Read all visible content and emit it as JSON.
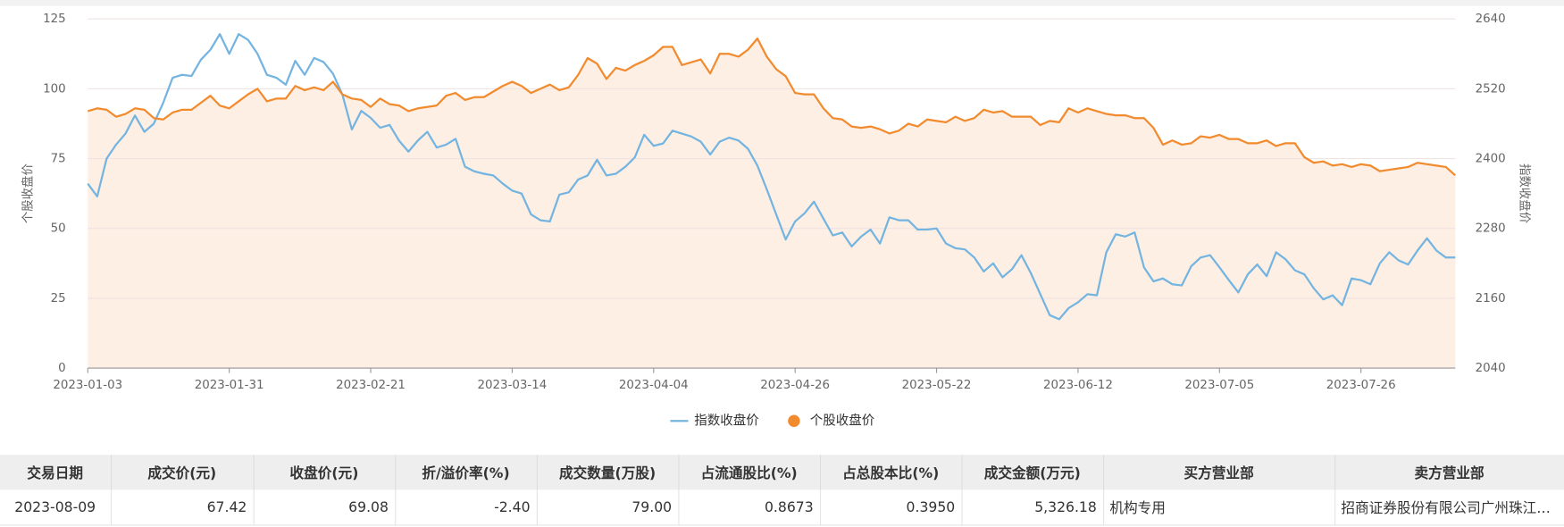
{
  "chart_data": {
    "type": "line",
    "ylabel": "个股收盘价",
    "y2label": "指数收盘价",
    "categories": [
      "2023-01-03",
      null,
      null,
      null,
      null,
      null,
      null,
      null,
      null,
      null,
      null,
      null,
      null,
      null,
      null,
      "2023-01-31",
      null,
      null,
      null,
      null,
      null,
      null,
      null,
      null,
      null,
      null,
      null,
      null,
      null,
      null,
      "2023-02-21",
      null,
      null,
      null,
      null,
      null,
      null,
      null,
      null,
      null,
      null,
      null,
      null,
      null,
      null,
      "2023-03-14",
      null,
      null,
      null,
      null,
      null,
      null,
      null,
      null,
      null,
      null,
      null,
      null,
      null,
      null,
      "2023-04-04",
      null,
      null,
      null,
      null,
      null,
      null,
      null,
      null,
      null,
      null,
      null,
      null,
      null,
      null,
      "2023-04-26",
      null,
      null,
      null,
      null,
      null,
      null,
      null,
      null,
      null,
      null,
      null,
      null,
      null,
      null,
      "2023-05-22",
      null,
      null,
      null,
      null,
      null,
      null,
      null,
      null,
      null,
      null,
      null,
      null,
      null,
      null,
      "2023-06-12",
      null,
      null,
      null,
      null,
      null,
      null,
      null,
      null,
      null,
      null,
      null,
      null,
      null,
      null,
      "2023-07-05",
      null,
      null,
      null,
      null,
      null,
      null,
      null,
      null,
      null,
      null,
      null,
      null,
      null,
      null,
      "2023-07-26",
      null,
      null,
      null,
      null,
      null,
      null,
      null,
      null,
      null,
      null
    ],
    "series": [
      {
        "name": "指数收盘价",
        "color": "#74b4e0",
        "axis": "y2",
        "values": [
          2357,
          2335,
          2400,
          2424,
          2443,
          2474,
          2446,
          2460,
          2496,
          2539,
          2544,
          2542,
          2570,
          2587,
          2614,
          2580,
          2614,
          2604,
          2580,
          2544,
          2539,
          2527,
          2568,
          2544,
          2573,
          2566,
          2546,
          2510,
          2450,
          2482,
          2470,
          2453,
          2458,
          2431,
          2412,
          2431,
          2446,
          2419,
          2424,
          2434,
          2386,
          2378,
          2374,
          2371,
          2357,
          2345,
          2340,
          2304,
          2294,
          2292,
          2338,
          2342,
          2364,
          2371,
          2398,
          2371,
          2374,
          2386,
          2402,
          2441,
          2422,
          2426,
          2448,
          2443,
          2438,
          2429,
          2407,
          2429,
          2436,
          2431,
          2417,
          2388,
          2347,
          2304,
          2261,
          2292,
          2306,
          2326,
          2297,
          2268,
          2273,
          2249,
          2266,
          2278,
          2254,
          2299,
          2294,
          2294,
          2278,
          2278,
          2280,
          2254,
          2246,
          2244,
          2230,
          2206,
          2220,
          2196,
          2210,
          2234,
          2203,
          2167,
          2131,
          2124,
          2143,
          2153,
          2167,
          2165,
          2239,
          2270,
          2266,
          2273,
          2213,
          2189,
          2194,
          2184,
          2182,
          2215,
          2230,
          2234,
          2213,
          2191,
          2170,
          2201,
          2218,
          2198,
          2239,
          2227,
          2208,
          2201,
          2177,
          2158,
          2165,
          2148,
          2194,
          2191,
          2184,
          2220,
          2239,
          2225,
          2218,
          2242,
          2263,
          2242,
          2230,
          2230
        ]
      },
      {
        "name": "个股收盘价",
        "color": "#f28a2e",
        "area_color": "#fdefe4",
        "values": [
          92,
          93,
          92.5,
          90,
          91,
          93,
          92.5,
          89.5,
          89,
          91.5,
          92.5,
          92.5,
          95,
          97.5,
          94,
          93,
          95.5,
          98,
          100,
          95.5,
          96.5,
          96.5,
          101,
          99.5,
          100.5,
          99.5,
          102.5,
          98,
          96.5,
          96,
          93.5,
          96.5,
          94.5,
          94,
          92,
          93,
          93.5,
          94,
          97.5,
          98.5,
          96,
          97,
          97,
          99,
          101,
          102.5,
          101,
          98.5,
          100,
          101.5,
          99.5,
          100.5,
          105,
          111,
          109,
          103.5,
          107.5,
          106.5,
          108.5,
          110,
          112,
          115,
          115,
          108.5,
          109.5,
          110.5,
          105.5,
          112.5,
          112.5,
          111.5,
          114,
          118,
          111.5,
          107,
          104.5,
          98.5,
          98,
          98,
          93,
          89.5,
          89,
          86.5,
          86,
          86.5,
          85.5,
          84,
          85,
          87.5,
          86.5,
          89,
          88.5,
          88,
          90,
          88.5,
          89.5,
          92.5,
          91.5,
          92,
          90,
          90,
          90,
          87,
          88.5,
          88,
          93,
          91.5,
          93,
          92,
          91,
          90.5,
          90.5,
          89.5,
          89.5,
          86,
          80,
          81.5,
          80,
          80.5,
          83,
          82.5,
          83.5,
          82,
          82,
          80.5,
          80.5,
          81.5,
          79.5,
          80.5,
          80.5,
          75.5,
          73.5,
          74,
          72.5,
          73,
          72,
          73,
          72.5,
          70.5,
          71,
          71.5,
          72,
          73.5,
          73,
          72.5,
          72,
          69
        ]
      }
    ],
    "ylim": [
      0,
      125
    ],
    "yticks": [
      0,
      25,
      50,
      75,
      100,
      125
    ],
    "y2lim": [
      2040,
      2640
    ],
    "y2ticks": [
      2040,
      2160,
      2280,
      2400,
      2520,
      2640
    ],
    "grid": true,
    "legend": "bottom"
  },
  "table": {
    "header": [
      "交易日期",
      "成交价(元)",
      "收盘价(元)",
      "折/溢价率(%)",
      "成交数量(万股)",
      "占流通股比(%)",
      "占总股本比(%)",
      "成交金额(万元)",
      "买方营业部",
      "卖方营业部"
    ],
    "rows": [
      [
        "2023-08-09",
        "67.42",
        "69.08",
        "-2.40",
        "79.00",
        "0.8673",
        "0.3950",
        "5,326.18",
        "机构专用",
        "招商证券股份有限公司广州珠江新城证券营业部"
      ]
    ]
  }
}
